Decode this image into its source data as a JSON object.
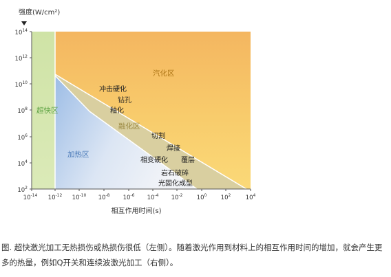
{
  "diagram": {
    "y_axis_title": "强度(W/cm²)",
    "x_axis_title": "相互作用时间(s)",
    "y_ticks": [
      {
        "base": "10",
        "exp": "14"
      },
      {
        "base": "10",
        "exp": "12"
      },
      {
        "base": "10",
        "exp": "10"
      },
      {
        "base": "10",
        "exp": "8"
      },
      {
        "base": "10",
        "exp": "6"
      },
      {
        "base": "10",
        "exp": "4"
      },
      {
        "base": "10",
        "exp": "2"
      }
    ],
    "x_ticks": [
      {
        "base": "10",
        "exp": "-14"
      },
      {
        "base": "10",
        "exp": "-12"
      },
      {
        "base": "10",
        "exp": "-10"
      },
      {
        "base": "10",
        "exp": "-8"
      },
      {
        "base": "10",
        "exp": "-6"
      },
      {
        "base": "10",
        "exp": "-4"
      },
      {
        "base": "10",
        "exp": "-2"
      },
      {
        "base": "10",
        "exp": "0"
      },
      {
        "base": "10",
        "exp": "2"
      },
      {
        "base": "10",
        "exp": "4"
      }
    ],
    "regions": {
      "ultrafast": "超快区",
      "vaporization": "汽化区",
      "melting": "融化区",
      "heating": "加热区"
    },
    "processes": {
      "shock_hardening": "冲击硬化",
      "drilling": "钻孔",
      "glazing": "釉化",
      "cutting": "切割",
      "welding": "焊接",
      "phase_hardening": "相变硬化",
      "cladding": "覆层",
      "rock_breaking": "岩石破碎",
      "photocuring": "光固化成型"
    },
    "colors": {
      "ultrafast_label": "#5aa040",
      "vaporization_label": "#b07818",
      "melting_label": "#9a8840",
      "heating_label": "#4a7ab8"
    }
  },
  "caption": "图. 超快激光加工无热损伤或热损伤很低（左侧）。随着激光作用到材料上的相互作用时间的增加，就会产生更多的热量，例如Q开关和连续波激光加工（右侧）。"
}
